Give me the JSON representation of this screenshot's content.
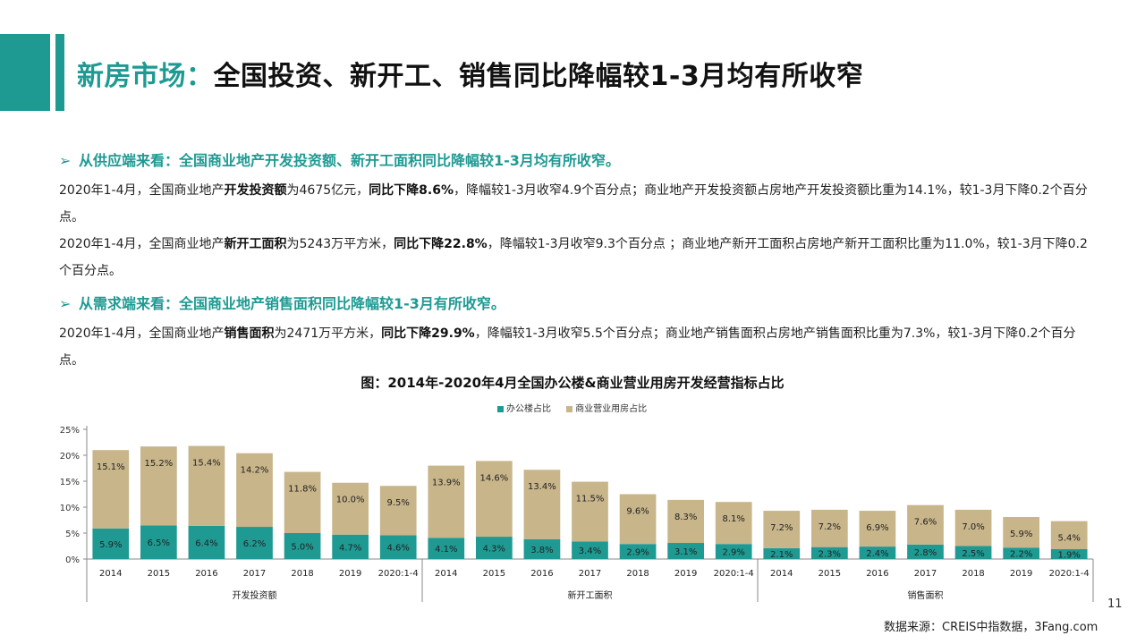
{
  "header": {
    "title_highlight": "新房市场：",
    "title_rest": "全国投资、新开工、销售同比降幅较1-3月均有所收窄"
  },
  "bullets": {
    "supply": "从供应端来看：全国商业地产开发投资额、新开工面积同比降幅较1-3月均有所收窄。",
    "demand": "从需求端来看：全国商业地产销售面积同比降幅较1-3月有所收窄。",
    "arrow": "➢"
  },
  "paragraphs": {
    "p1": {
      "a": "2020年1-4月，全国商业地产",
      "b": "开发投资额",
      "c": "为4675亿元，",
      "d": "同比下降8.6%",
      "e": "，降幅较1-3月收窄4.9个百分点；商业地产开发投资额占房地产开发投资额比重为14.1%，较1-3月下降0.2个百分点。"
    },
    "p2": {
      "a": "2020年1-4月，全国商业地产",
      "b": "新开工面积",
      "c": "为5243万平方米，",
      "d": "同比下降22.8%",
      "e": "，降幅较1-3月收窄9.3个百分点 ；商业地产新开工面积占房地产新开工面积比重为11.0%，较1-3月下降0.2个百分点。"
    },
    "p3": {
      "a": "2020年1-4月，全国商业地产",
      "b": "销售面积",
      "c": "为2471万平方米，",
      "d": "同比下降29.9%",
      "e": "，降幅较1-3月收窄5.5个百分点；商业地产销售面积占房地产销售面积比重为7.3%，较1-3月下降0.2个百分点。"
    }
  },
  "chart_data": {
    "type": "bar",
    "stacked": true,
    "title": "图：2014年-2020年4月全国办公楼&商业营业用房开发经营指标占比",
    "categories": [
      "2014",
      "2015",
      "2016",
      "2017",
      "2018",
      "2019",
      "2020:1-4"
    ],
    "groups": [
      "开发投资额",
      "新开工面积",
      "销售面积"
    ],
    "ylim": [
      0,
      25
    ],
    "yticks": [
      "0%",
      "5%",
      "10%",
      "15%",
      "20%",
      "25%"
    ],
    "legend_position": "top-center",
    "colors": {
      "office": "#1e9a93",
      "commercial": "#c8b58a"
    },
    "series": [
      {
        "name": "办公楼占比",
        "values": [
          [
            5.9,
            6.5,
            6.4,
            6.2,
            5.0,
            4.7,
            4.6
          ],
          [
            4.1,
            4.3,
            3.8,
            3.4,
            2.9,
            3.1,
            2.9
          ],
          [
            2.1,
            2.3,
            2.4,
            2.8,
            2.5,
            2.2,
            1.9
          ]
        ]
      },
      {
        "name": "商业营业用房占比",
        "values": [
          [
            15.1,
            15.2,
            15.4,
            14.2,
            11.8,
            10.0,
            9.5
          ],
          [
            13.9,
            14.6,
            13.4,
            11.5,
            9.6,
            8.3,
            8.1
          ],
          [
            7.2,
            7.2,
            6.9,
            7.6,
            7.0,
            5.9,
            5.4
          ]
        ]
      }
    ]
  },
  "footer": {
    "page_number": "11",
    "source": "数据来源：CREIS中指数据，3Fang.com"
  }
}
